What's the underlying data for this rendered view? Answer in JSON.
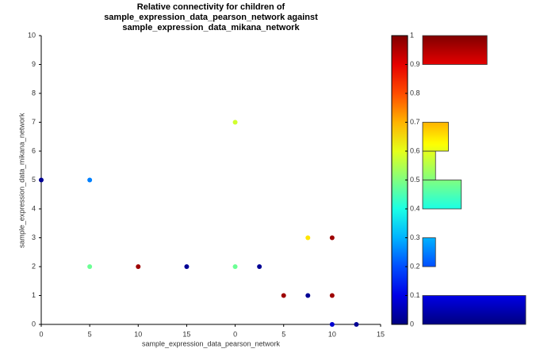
{
  "chart_data": {
    "type": "scatter",
    "title": [
      "Relative connectivity for children of",
      "sample_expression_data_pearson_network against",
      "sample_expression_data_mikana_network"
    ],
    "x_label": "sample_expression_data_pearson_network",
    "y_label": "sample_expression_data_mikana_network",
    "x": [
      0,
      5,
      5,
      10,
      15,
      20,
      20,
      22.5,
      25,
      27.5,
      27.5,
      30,
      30,
      30,
      32.5
    ],
    "y": [
      5,
      5,
      2,
      2,
      2,
      7,
      2,
      2,
      1,
      3,
      1,
      3,
      1,
      0,
      0
    ],
    "color_values": [
      0.02,
      0.25,
      0.48,
      0.97,
      0.02,
      0.58,
      0.48,
      0.02,
      0.97,
      0.65,
      0.02,
      0.97,
      0.97,
      0.08,
      0.02
    ],
    "xlim": [
      0,
      35
    ],
    "xticks": [
      0,
      5,
      10,
      15,
      {
        "value": 20,
        "label": "0"
      },
      {
        "value": 25,
        "label": "5"
      },
      {
        "value": 30,
        "label": "10"
      },
      {
        "value": 35,
        "label": "15"
      }
    ],
    "ylim": [
      0,
      10
    ],
    "yticks": [
      0,
      1,
      2,
      3,
      4,
      5,
      6,
      7,
      8,
      9,
      10
    ],
    "colormap": "jet",
    "clim": [
      0,
      1
    ],
    "cticks": [
      0,
      0.1,
      0.2,
      0.3,
      0.4,
      0.5,
      0.6,
      0.7,
      0.8,
      0.9,
      1
    ],
    "hist_bins": [
      0,
      0.1,
      0.2,
      0.3,
      0.4,
      0.5,
      0.6,
      0.7,
      0.8,
      0.9,
      1
    ],
    "hist_counts": [
      8,
      0,
      1,
      0,
      3,
      1,
      2,
      0,
      0,
      5
    ]
  }
}
